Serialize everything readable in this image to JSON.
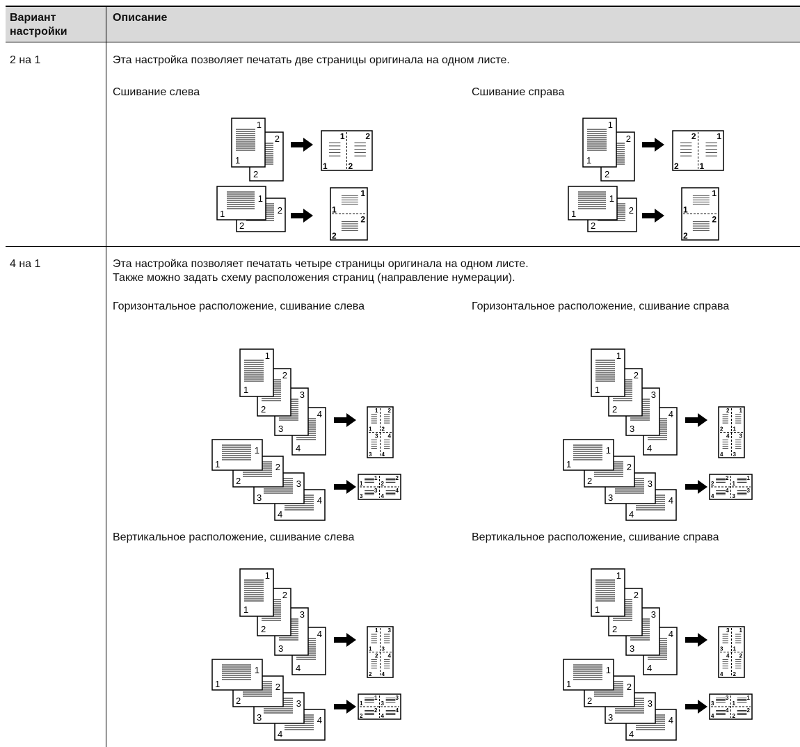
{
  "table": {
    "header": [
      "Вариант настройки",
      "Описание"
    ],
    "rows": [
      {
        "option": "2 на 1",
        "description": [
          "Эта настройка позволяет печатать две страницы оригинала на одном листе."
        ],
        "variants": [
          {
            "caption": "Сшивание слева"
          },
          {
            "caption": "Сшивание справа"
          }
        ]
      },
      {
        "option": "4 на 1",
        "description": [
          "Эта настройка позволяет печатать четыре страницы оригинала на одном листе.",
          "Также можно задать схему расположения страниц (направление нумерации)."
        ],
        "variants": [
          {
            "caption": "Горизонтальное расположение, сшивание слева"
          },
          {
            "caption": "Горизонтальное расположение, сшивание справа"
          },
          {
            "caption": "Вертикальное расположение, сшивание слева"
          },
          {
            "caption": "Вертикальное расположение, сшивание справа"
          }
        ]
      }
    ]
  },
  "page_numbers": [
    "1",
    "2",
    "3",
    "4"
  ]
}
